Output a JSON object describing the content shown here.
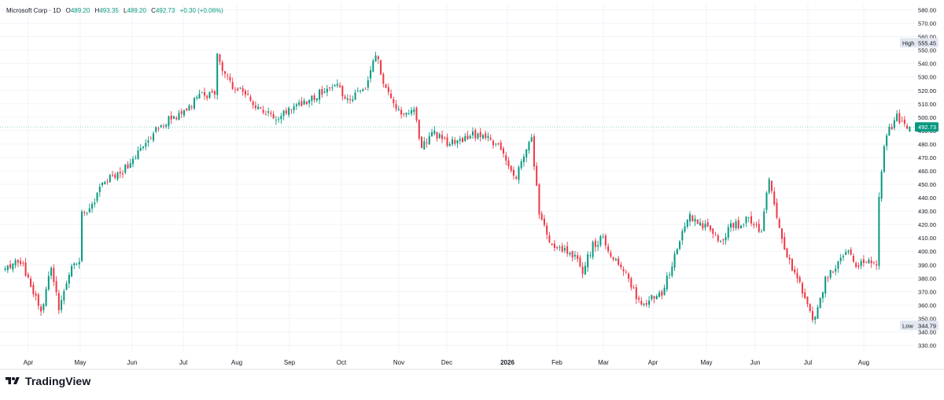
{
  "legend": {
    "symbol": "Microsoft Corp · 1D",
    "o_label": "O",
    "o_value": "489.20",
    "h_label": "H",
    "h_value": "493.35",
    "l_label": "L",
    "l_value": "489.20",
    "c_label": "C",
    "c_value": "492.73",
    "change": "+0.30 (+0.06%)"
  },
  "brand": {
    "name": "TradingView"
  },
  "colors": {
    "up": "#089981",
    "down": "#f23645",
    "grid": "#f0f3fa",
    "text": "#131722",
    "price_tag": "#089981"
  },
  "chart_data": {
    "type": "candlestick",
    "title": "Microsoft Corp · 1D",
    "ylim": [
      325,
      585
    ],
    "y_ticks": [
      330,
      340,
      350,
      360,
      370,
      380,
      390,
      400,
      410,
      420,
      430,
      440,
      450,
      460,
      470,
      480,
      490,
      500,
      510,
      520,
      530,
      540,
      550,
      560,
      570,
      580
    ],
    "x_tick_labels": [
      "Apr",
      "May",
      "Jun",
      "Jul",
      "Aug",
      "Sep",
      "Oct",
      "Nov",
      "Dec",
      "2026",
      "Feb",
      "Mar",
      "Apr",
      "May",
      "Jun",
      "Jul",
      "Aug"
    ],
    "last_price": 492.73,
    "high": {
      "label": "High",
      "value": "555.45"
    },
    "low": {
      "label": "Low",
      "value": "344.79"
    },
    "close_anchors": [
      [
        0,
        388
      ],
      [
        6,
        392
      ],
      [
        10,
        375
      ],
      [
        14,
        355
      ],
      [
        18,
        390
      ],
      [
        21,
        358
      ],
      [
        25,
        385
      ],
      [
        29,
        395
      ],
      [
        30,
        427
      ],
      [
        34,
        436
      ],
      [
        40,
        455
      ],
      [
        46,
        460
      ],
      [
        52,
        475
      ],
      [
        57,
        487
      ],
      [
        63,
        497
      ],
      [
        70,
        505
      ],
      [
        76,
        515
      ],
      [
        82,
        518
      ],
      [
        83,
        545
      ],
      [
        88,
        525
      ],
      [
        93,
        520
      ],
      [
        98,
        508
      ],
      [
        102,
        503
      ],
      [
        106,
        500
      ],
      [
        110,
        505
      ],
      [
        114,
        507
      ],
      [
        120,
        515
      ],
      [
        126,
        520
      ],
      [
        130,
        525
      ],
      [
        134,
        512
      ],
      [
        138,
        520
      ],
      [
        142,
        525
      ],
      [
        145,
        548
      ],
      [
        148,
        525
      ],
      [
        152,
        510
      ],
      [
        156,
        500
      ],
      [
        160,
        505
      ],
      [
        163,
        477
      ],
      [
        167,
        490
      ],
      [
        172,
        482
      ],
      [
        177,
        480
      ],
      [
        182,
        486
      ],
      [
        186,
        488
      ],
      [
        191,
        482
      ],
      [
        196,
        470
      ],
      [
        200,
        455
      ],
      [
        204,
        475
      ],
      [
        206,
        484
      ],
      [
        209,
        430
      ],
      [
        213,
        405
      ],
      [
        218,
        400
      ],
      [
        222,
        398
      ],
      [
        226,
        385
      ],
      [
        230,
        405
      ],
      [
        234,
        410
      ],
      [
        238,
        395
      ],
      [
        242,
        385
      ],
      [
        246,
        370
      ],
      [
        249,
        358
      ],
      [
        253,
        366
      ],
      [
        257,
        370
      ],
      [
        260,
        385
      ],
      [
        264,
        410
      ],
      [
        268,
        425
      ],
      [
        272,
        420
      ],
      [
        276,
        415
      ],
      [
        280,
        405
      ],
      [
        284,
        420
      ],
      [
        288,
        420
      ],
      [
        291,
        425
      ],
      [
        296,
        415
      ],
      [
        299,
        455
      ],
      [
        302,
        425
      ],
      [
        306,
        395
      ],
      [
        310,
        380
      ],
      [
        314,
        360
      ],
      [
        317,
        348
      ],
      [
        321,
        380
      ],
      [
        325,
        388
      ],
      [
        329,
        400
      ],
      [
        333,
        390
      ],
      [
        338,
        395
      ],
      [
        341,
        388
      ],
      [
        342,
        440
      ],
      [
        344,
        477
      ],
      [
        346,
        490
      ],
      [
        349,
        500
      ],
      [
        352,
        493
      ],
      [
        354,
        492.73
      ]
    ],
    "volatility": 4.5,
    "seed": 20240314
  }
}
